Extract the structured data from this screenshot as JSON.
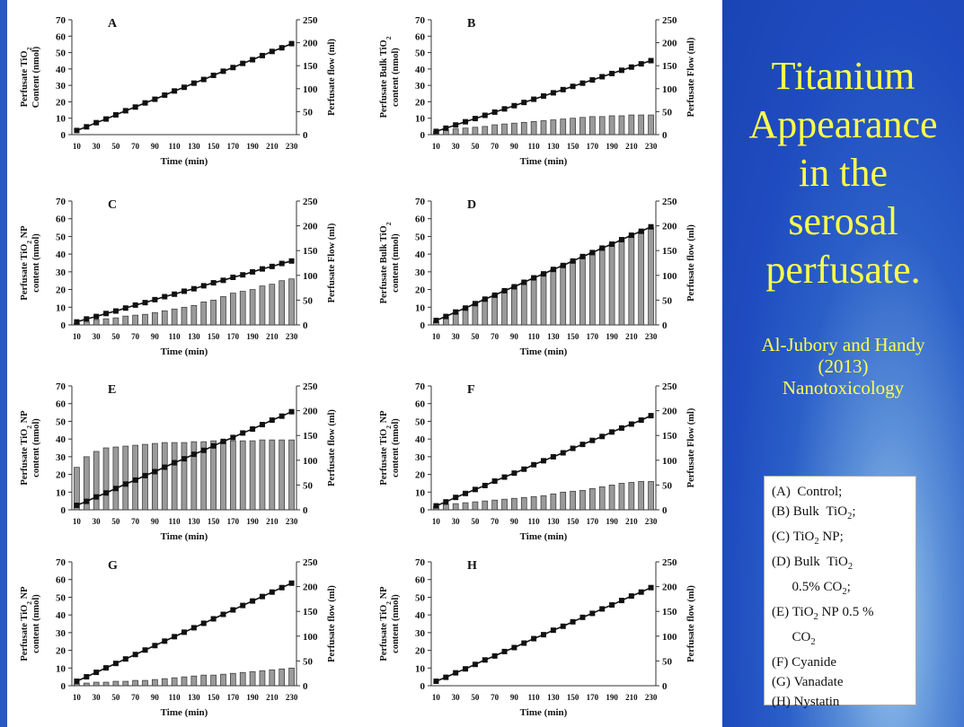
{
  "slide": {
    "title_lines": [
      "Titanium",
      "Appearance",
      "in the",
      "serosal",
      "perfusate."
    ],
    "citation_lines": [
      "Al-Jubory and Handy",
      "(2013)",
      "Nanotoxicology"
    ],
    "legend_items": [
      "(A)  Control;",
      "(B) Bulk  TiO2;",
      "(C) TiO2 NP;",
      "(D) Bulk  TiO2",
      "      0.5% CO2;",
      "(E) TiO2 NP 0.5 %",
      "      CO2",
      "(F) Cyanide",
      "(G) Vanadate",
      "(H) Nystatin"
    ],
    "colors": {
      "panel_bg": "#1e4bbf",
      "title_text": "#ffff4a",
      "bars": "#9a9a9a",
      "line": "#111111"
    }
  },
  "chart_data": [
    {
      "panel": "A",
      "type": "bar+line",
      "ylabel_lines": [
        "Perfusate TiO2",
        "Content (nmol)"
      ],
      "y2label": "Perfusate flow (ml)",
      "xlabel": "Time (min)",
      "categories": [
        10,
        20,
        30,
        40,
        50,
        60,
        70,
        80,
        90,
        100,
        110,
        120,
        130,
        140,
        150,
        160,
        170,
        180,
        190,
        200,
        210,
        220,
        230
      ],
      "x_ticks": [
        "10",
        "30",
        "50",
        "70",
        "90",
        "110",
        "130",
        "150",
        "170",
        "190",
        "210",
        "230"
      ],
      "ylim": [
        0,
        70
      ],
      "y_ticks": [
        0,
        10,
        20,
        30,
        40,
        50,
        60,
        70
      ],
      "y2lim": [
        0,
        250
      ],
      "y2_ticks": [
        0,
        50,
        100,
        150,
        200,
        250
      ],
      "bars": [
        0,
        0,
        0,
        0,
        0,
        0,
        0,
        0,
        0,
        0,
        0,
        0,
        0,
        0,
        0,
        0,
        0,
        0,
        0,
        0,
        0,
        0,
        0
      ],
      "flow": [
        9,
        17,
        26,
        34,
        43,
        52,
        60,
        69,
        77,
        86,
        95,
        103,
        112,
        120,
        129,
        138,
        146,
        155,
        163,
        172,
        181,
        189,
        198
      ]
    },
    {
      "panel": "B",
      "type": "bar+line",
      "ylabel_lines": [
        "Perfusate Bulk TiO2",
        "content (nmol)"
      ],
      "y2label": "Perfusate Flow (ml)",
      "xlabel": "Time (min)",
      "categories": [
        10,
        20,
        30,
        40,
        50,
        60,
        70,
        80,
        90,
        100,
        110,
        120,
        130,
        140,
        150,
        160,
        170,
        180,
        190,
        200,
        210,
        220,
        230
      ],
      "x_ticks": [
        "10",
        "30",
        "50",
        "70",
        "90",
        "110",
        "130",
        "150",
        "170",
        "190",
        "210",
        "230"
      ],
      "ylim": [
        0,
        70
      ],
      "y_ticks": [
        0,
        10,
        20,
        30,
        40,
        50,
        60,
        70
      ],
      "y2lim": [
        0,
        250
      ],
      "y2_ticks": [
        0,
        50,
        100,
        150,
        200,
        250
      ],
      "bars": [
        2,
        3,
        3.5,
        4,
        4.5,
        5,
        6,
        6.5,
        7,
        7.5,
        8,
        8.5,
        9,
        9.5,
        10,
        10.5,
        11,
        11,
        11.5,
        11.5,
        12,
        12,
        12
      ],
      "flow": [
        7,
        14,
        21,
        28,
        35,
        42,
        49,
        56,
        63,
        70,
        77,
        84,
        91,
        98,
        105,
        112,
        119,
        126,
        133,
        140,
        147,
        154,
        161
      ]
    },
    {
      "panel": "C",
      "type": "bar+line",
      "ylabel_lines": [
        "Perfusate TiO2 NP",
        "content (nmol)"
      ],
      "y2label": "Perfusate Flow (ml)",
      "xlabel": "Time (min)",
      "categories": [
        10,
        20,
        30,
        40,
        50,
        60,
        70,
        80,
        90,
        100,
        110,
        120,
        130,
        140,
        150,
        160,
        170,
        180,
        190,
        200,
        210,
        220,
        230
      ],
      "x_ticks": [
        "10",
        "30",
        "50",
        "70",
        "90",
        "110",
        "130",
        "150",
        "170",
        "190",
        "210",
        "230"
      ],
      "ylim": [
        0,
        70
      ],
      "y_ticks": [
        0,
        10,
        20,
        30,
        40,
        50,
        60,
        70
      ],
      "y2lim": [
        0,
        250
      ],
      "y2_ticks": [
        0,
        50,
        100,
        150,
        200,
        250
      ],
      "bars": [
        1,
        2,
        3,
        3.5,
        4,
        5,
        5.5,
        6,
        7,
        8,
        9,
        10,
        11,
        13,
        14,
        16,
        18,
        19,
        20,
        22,
        23,
        25,
        26
      ],
      "flow": [
        6,
        12,
        17,
        23,
        28,
        34,
        40,
        45,
        51,
        57,
        62,
        68,
        73,
        79,
        85,
        90,
        96,
        101,
        107,
        113,
        118,
        124,
        129
      ]
    },
    {
      "panel": "D",
      "type": "bar+line",
      "ylabel_lines": [
        "Perfusate Bulk TiO2",
        "content (nmol)"
      ],
      "y2label": "Perfusate flow (ml)",
      "xlabel": "Time (min)",
      "categories": [
        10,
        20,
        30,
        40,
        50,
        60,
        70,
        80,
        90,
        100,
        110,
        120,
        130,
        140,
        150,
        160,
        170,
        180,
        190,
        200,
        210,
        220,
        230
      ],
      "x_ticks": [
        "10",
        "30",
        "50",
        "70",
        "90",
        "110",
        "130",
        "150",
        "170",
        "190",
        "210",
        "230"
      ],
      "ylim": [
        0,
        70
      ],
      "y_ticks": [
        0,
        10,
        20,
        30,
        40,
        50,
        60,
        70
      ],
      "y2lim": [
        0,
        250
      ],
      "y2_ticks": [
        0,
        50,
        100,
        150,
        200,
        250
      ],
      "bars": [
        2,
        4.5,
        7,
        9.5,
        12,
        14.5,
        17,
        19.5,
        22,
        24,
        26.5,
        29,
        31.5,
        34,
        36,
        38.5,
        41,
        43.5,
        46,
        48,
        50.5,
        53,
        55
      ],
      "flow": [
        9,
        17,
        26,
        34,
        43,
        52,
        60,
        69,
        77,
        86,
        95,
        103,
        112,
        120,
        129,
        138,
        146,
        155,
        163,
        172,
        181,
        189,
        198
      ]
    },
    {
      "panel": "E",
      "type": "bar+line",
      "ylabel_lines": [
        "Perfusate TiO2 NP",
        "content (nmol)"
      ],
      "y2label": "Perfusate flow (ml)",
      "xlabel": "Time (min)",
      "categories": [
        10,
        20,
        30,
        40,
        50,
        60,
        70,
        80,
        90,
        100,
        110,
        120,
        130,
        140,
        150,
        160,
        170,
        180,
        190,
        200,
        210,
        220,
        230
      ],
      "x_ticks": [
        "10",
        "30",
        "50",
        "70",
        "90",
        "110",
        "130",
        "150",
        "170",
        "190",
        "210",
        "230"
      ],
      "ylim": [
        0,
        70
      ],
      "y_ticks": [
        0,
        10,
        20,
        30,
        40,
        50,
        60,
        70
      ],
      "y2lim": [
        0,
        250
      ],
      "y2_ticks": [
        0,
        50,
        100,
        150,
        200,
        250
      ],
      "bars": [
        24,
        30,
        33,
        35,
        35.5,
        36,
        36.5,
        37,
        37.5,
        38,
        38,
        38,
        38.5,
        38.5,
        39,
        39,
        39,
        39,
        39,
        39.5,
        39.5,
        39.5,
        39.5
      ],
      "flow": [
        9,
        17,
        26,
        34,
        43,
        52,
        60,
        69,
        77,
        86,
        95,
        103,
        112,
        120,
        129,
        138,
        146,
        155,
        163,
        172,
        181,
        189,
        198
      ]
    },
    {
      "panel": "F",
      "type": "bar+line",
      "ylabel_lines": [
        "Perfusate TiO2 NP",
        "content (nmol)"
      ],
      "y2label": "Perfusate Flow (ml)",
      "xlabel": "Time (min)",
      "categories": [
        10,
        20,
        30,
        40,
        50,
        60,
        70,
        80,
        90,
        100,
        110,
        120,
        130,
        140,
        150,
        160,
        170,
        180,
        190,
        200,
        210,
        220,
        230
      ],
      "x_ticks": [
        "10",
        "30",
        "50",
        "70",
        "90",
        "110",
        "130",
        "150",
        "170",
        "190",
        "210",
        "230"
      ],
      "ylim": [
        0,
        70
      ],
      "y_ticks": [
        0,
        10,
        20,
        30,
        40,
        50,
        60,
        70
      ],
      "y2lim": [
        0,
        250
      ],
      "y2_ticks": [
        0,
        50,
        100,
        150,
        200,
        250
      ],
      "bars": [
        2,
        3,
        3.5,
        4,
        4.5,
        5,
        5.5,
        6,
        6.5,
        7,
        7.5,
        8,
        9,
        10,
        10.5,
        11,
        12,
        13,
        14,
        15,
        15.5,
        16,
        16
      ],
      "flow": [
        8,
        16,
        25,
        33,
        41,
        49,
        58,
        66,
        74,
        82,
        91,
        99,
        107,
        115,
        124,
        132,
        140,
        148,
        157,
        165,
        173,
        181,
        190
      ]
    },
    {
      "panel": "G",
      "type": "bar+line",
      "ylabel_lines": [
        "Perfusate TiO2 NP",
        "content (nmol)"
      ],
      "y2label": "Perfusate flow (ml)",
      "xlabel": "Time (min)",
      "categories": [
        10,
        20,
        30,
        40,
        50,
        60,
        70,
        80,
        90,
        100,
        110,
        120,
        130,
        140,
        150,
        160,
        170,
        180,
        190,
        200,
        210,
        220,
        230
      ],
      "x_ticks": [
        "10",
        "30",
        "50",
        "70",
        "90",
        "110",
        "130",
        "150",
        "170",
        "190",
        "210",
        "230"
      ],
      "ylim": [
        0,
        70
      ],
      "y_ticks": [
        0,
        10,
        20,
        30,
        40,
        50,
        60,
        70
      ],
      "y2lim": [
        0,
        250
      ],
      "y2_ticks": [
        0,
        50,
        100,
        150,
        200,
        250
      ],
      "bars": [
        1,
        1.5,
        2,
        2,
        2.5,
        2.5,
        3,
        3,
        3.5,
        4,
        4.5,
        5,
        5.5,
        6,
        6,
        6.5,
        7,
        7.5,
        8,
        8.5,
        9,
        9.5,
        10
      ],
      "flow": [
        9,
        18,
        27,
        36,
        45,
        54,
        63,
        72,
        81,
        90,
        99,
        108,
        117,
        126,
        135,
        144,
        153,
        162,
        171,
        180,
        189,
        198,
        207
      ]
    },
    {
      "panel": "H",
      "type": "bar+line",
      "ylabel_lines": [
        "Perfusate TiO2 NP",
        "content (nmol)"
      ],
      "y2label": "Perfusate flow (ml)",
      "xlabel": "Time (min)",
      "categories": [
        10,
        20,
        30,
        40,
        50,
        60,
        70,
        80,
        90,
        100,
        110,
        120,
        130,
        140,
        150,
        160,
        170,
        180,
        190,
        200,
        210,
        220,
        230
      ],
      "x_ticks": [
        "10",
        "30",
        "50",
        "70",
        "90",
        "110",
        "130",
        "150",
        "170",
        "190",
        "210",
        "230"
      ],
      "ylim": [
        0,
        70
      ],
      "y_ticks": [
        0,
        10,
        20,
        30,
        40,
        50,
        60,
        70
      ],
      "y2lim": [
        0,
        250
      ],
      "y2_ticks": [
        0,
        50,
        100,
        150,
        200,
        250
      ],
      "bars": [
        0,
        0,
        0,
        0,
        0,
        0,
        0,
        0,
        0,
        0,
        0,
        0,
        0,
        0,
        0,
        0,
        0,
        0,
        0,
        0,
        0,
        0,
        0
      ],
      "flow": [
        9,
        17,
        26,
        34,
        43,
        52,
        60,
        69,
        77,
        86,
        95,
        103,
        112,
        120,
        129,
        138,
        146,
        155,
        163,
        172,
        181,
        189,
        198
      ]
    }
  ]
}
